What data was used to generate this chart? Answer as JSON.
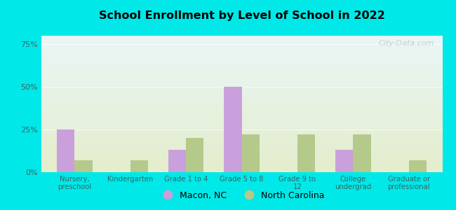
{
  "title": "School Enrollment by Level of School in 2022",
  "categories": [
    "Nursery,\npreschool",
    "Kindergarten",
    "Grade 1 to 4",
    "Grade 5 to 8",
    "Grade 9 to\n12",
    "College\nundergrad",
    "Graduate or\nprofessional"
  ],
  "macon_values": [
    25,
    0,
    13,
    50,
    0,
    13,
    0
  ],
  "nc_values": [
    7,
    7,
    20,
    22,
    22,
    22,
    7
  ],
  "macon_color": "#c9a0dc",
  "nc_color": "#b5c98a",
  "bar_width": 0.32,
  "ylim": [
    0,
    80
  ],
  "yticks": [
    0,
    25,
    50,
    75
  ],
  "ytick_labels": [
    "0%",
    "25%",
    "50%",
    "75%"
  ],
  "legend_labels": [
    "Macon, NC",
    "North Carolina"
  ],
  "outer_bg": "#00e8e8",
  "plot_bg_top": "#eaf6f8",
  "plot_bg_bottom": "#e4edcc",
  "grid_color": "#f0f0e8",
  "watermark": "City-Data.com"
}
